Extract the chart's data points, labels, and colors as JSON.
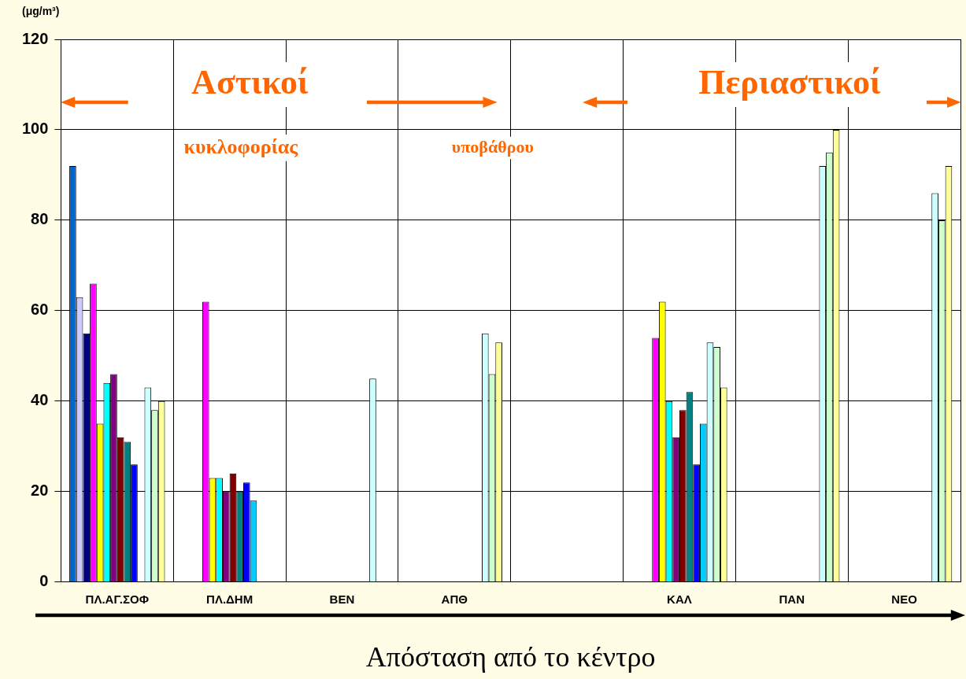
{
  "chart_data": {
    "type": "bar",
    "xlabel": "Απόσταση από το κέντρο",
    "ylabel": "(μg/m³)",
    "annotations": [
      "Αστικοί",
      "Περιαστικοί",
      "κυκλοφορίας",
      "υποβάθρου"
    ],
    "categories": [
      "ΠΛ.ΑΓ.ΣΟΦ",
      "ΠΛ.ΔΗΜ",
      "ΒΕΝ",
      "ΑΠΘ",
      null,
      "ΚΑΛ",
      "ΠΑΝ",
      "ΝΕΟ"
    ],
    "ylim": [
      0,
      120
    ],
    "yticks": [
      0,
      20,
      40,
      60,
      80,
      100,
      120
    ],
    "grid": true,
    "series": [
      {
        "color": "#0066cc",
        "values": [
          92,
          null,
          null,
          null,
          null,
          null,
          null,
          null
        ]
      },
      {
        "color": "#ccccff",
        "values": [
          63,
          null,
          null,
          null,
          null,
          null,
          null,
          null
        ]
      },
      {
        "color": "#000080",
        "values": [
          55,
          null,
          null,
          null,
          null,
          null,
          null,
          null
        ]
      },
      {
        "color": "#ff00ff",
        "values": [
          66,
          62,
          null,
          null,
          null,
          54,
          null,
          null
        ]
      },
      {
        "color": "#ffff00",
        "values": [
          35,
          23,
          null,
          null,
          null,
          62,
          null,
          null
        ]
      },
      {
        "color": "#00ffff",
        "values": [
          44,
          23,
          null,
          null,
          null,
          40,
          null,
          null
        ]
      },
      {
        "color": "#800080",
        "values": [
          46,
          20,
          null,
          null,
          null,
          32,
          null,
          null
        ]
      },
      {
        "color": "#800000",
        "values": [
          32,
          24,
          null,
          null,
          null,
          38,
          null,
          null
        ]
      },
      {
        "color": "#008080",
        "values": [
          31,
          20,
          null,
          null,
          null,
          42,
          null,
          null
        ]
      },
      {
        "color": "#0000ff",
        "values": [
          26,
          22,
          null,
          null,
          null,
          26,
          null,
          null
        ]
      },
      {
        "color": "#00ccff",
        "values": [
          null,
          18,
          null,
          null,
          null,
          35,
          null,
          null
        ]
      },
      {
        "color": "#ccffff",
        "values": [
          43,
          null,
          45,
          55,
          null,
          53,
          92,
          86
        ]
      },
      {
        "color": "#ccffcc",
        "values": [
          38,
          null,
          null,
          46,
          null,
          52,
          95,
          80
        ]
      },
      {
        "color": "#ffff99",
        "values": [
          40,
          null,
          null,
          53,
          null,
          43,
          100,
          92
        ]
      }
    ]
  }
}
